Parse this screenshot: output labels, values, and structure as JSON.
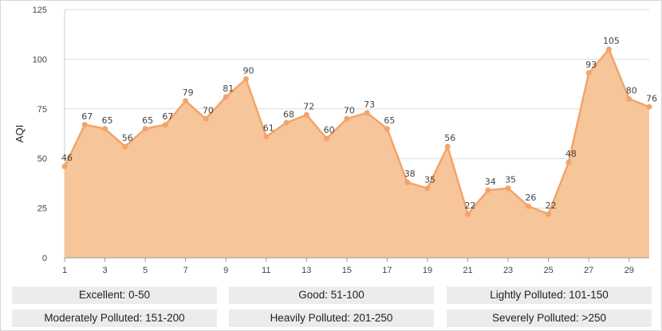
{
  "chart_data": {
    "type": "area",
    "ylabel": "AQI",
    "xlabel": "",
    "title": "",
    "x": [
      1,
      2,
      3,
      4,
      5,
      6,
      7,
      8,
      9,
      10,
      11,
      12,
      13,
      14,
      15,
      16,
      17,
      18,
      19,
      20,
      21,
      22,
      23,
      24,
      25,
      26,
      27,
      28,
      29,
      30
    ],
    "values": [
      46,
      67,
      65,
      56,
      65,
      67,
      79,
      70,
      81,
      90,
      61,
      68,
      72,
      60,
      70,
      73,
      65,
      38,
      35,
      56,
      22,
      34,
      35,
      26,
      22,
      48,
      93,
      105,
      80,
      76
    ],
    "x_tick_labels": [
      "1",
      "3",
      "5",
      "7",
      "9",
      "11",
      "13",
      "15",
      "17",
      "19",
      "21",
      "23",
      "25",
      "27",
      "29"
    ],
    "y_ticks": [
      0,
      25,
      50,
      75,
      100,
      125
    ],
    "ylim": [
      0,
      125
    ],
    "xlim": [
      1,
      30
    ],
    "grid": true,
    "fill_color": "#f7c59a",
    "line_color": "#f2a46a"
  },
  "legend": {
    "items": [
      {
        "label": "Excellent: 0-50"
      },
      {
        "label": "Good: 51-100"
      },
      {
        "label": "Lightly Polluted: 101-150"
      },
      {
        "label": "Moderately Polluted: 151-200"
      },
      {
        "label": "Heavily Polluted: 201-250"
      },
      {
        "label": "Severely Polluted: >250"
      }
    ]
  }
}
